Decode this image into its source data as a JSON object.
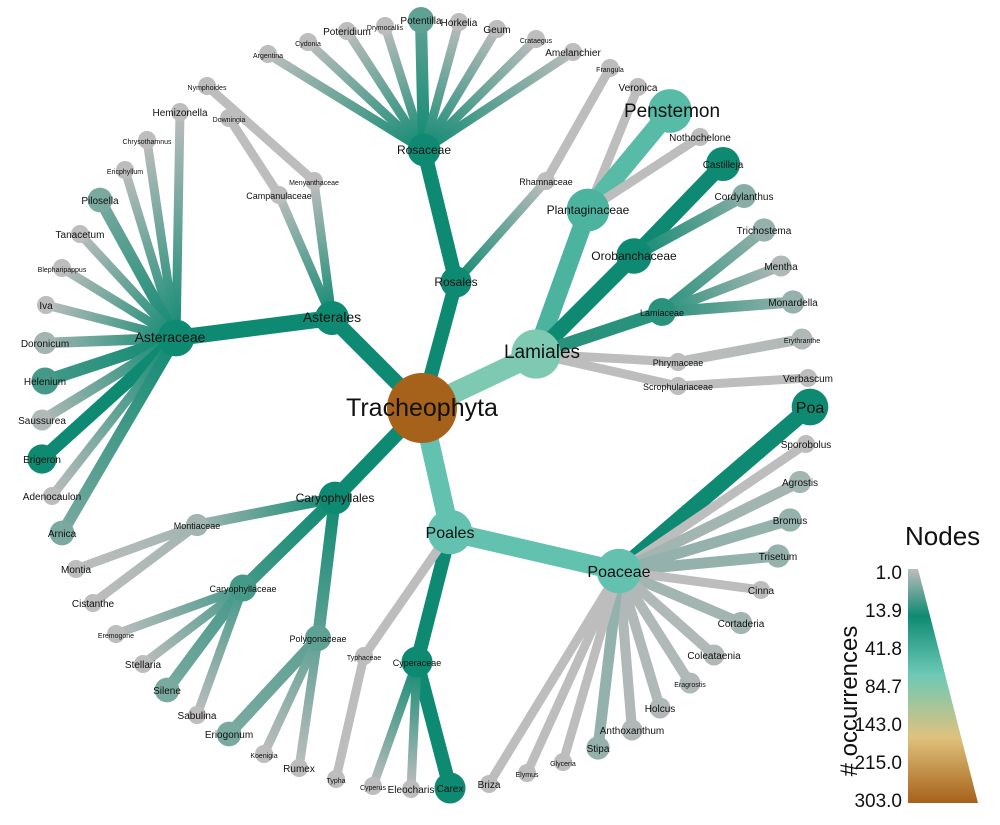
{
  "diagram": {
    "nodes": [
      {
        "id": "Tracheophyta",
        "label": "Tracheophyta",
        "occ": 303,
        "big": true
      },
      {
        "id": "Asterales",
        "label": "Asterales",
        "occ": 30
      },
      {
        "id": "Rosales",
        "label": "Rosales",
        "occ": 20
      },
      {
        "id": "Lamiales",
        "label": "Lamiales",
        "occ": 110,
        "big": true
      },
      {
        "id": "Poales",
        "label": "Poales",
        "occ": 80,
        "big": true
      },
      {
        "id": "Caryophyllales",
        "label": "Caryophyllales",
        "occ": 25
      },
      {
        "id": "Asteraceae",
        "label": "Asteraceae",
        "occ": 40
      },
      {
        "id": "Campanulaceae",
        "label": "Campanulaceae",
        "occ": 1
      },
      {
        "id": "Menyanthaceae",
        "label": "Menyanthaceae",
        "occ": 1
      },
      {
        "id": "Rosaceae",
        "label": "Rosaceae",
        "occ": 25
      },
      {
        "id": "Rhamnaceae",
        "label": "Rhamnaceae",
        "occ": 1
      },
      {
        "id": "Plantaginaceae",
        "label": "Plantaginaceae",
        "occ": 70
      },
      {
        "id": "Orobanchaceae",
        "label": "Orobanchaceae",
        "occ": 35
      },
      {
        "id": "Lamiaceae",
        "label": "Lamiaceae",
        "occ": 12
      },
      {
        "id": "Phrymaceae",
        "label": "Phrymaceae",
        "occ": 1
      },
      {
        "id": "Scrophulariaceae",
        "label": "Scrophulariaceae",
        "occ": 1
      },
      {
        "id": "Poaceae",
        "label": "Poaceae",
        "occ": 80
      },
      {
        "id": "Cyperaceae",
        "label": "Cyperaceae",
        "occ": 20
      },
      {
        "id": "Typhaceae",
        "label": "Typhaceae",
        "occ": 1
      },
      {
        "id": "Montiaceae",
        "label": "Montiaceae",
        "occ": 3
      },
      {
        "id": "Caryophyllaceae",
        "label": "Caryophyllaceae",
        "occ": 10
      },
      {
        "id": "Polygonaceae",
        "label": "Polygonaceae",
        "occ": 8
      },
      {
        "id": "Hemizonella",
        "label": "Hemizonella",
        "occ": 1
      },
      {
        "id": "Chrysothamnus",
        "label": "Chrysothamnus",
        "occ": 1
      },
      {
        "id": "Ericphyllum",
        "label": "Ericphyllum",
        "occ": 1
      },
      {
        "id": "Pilosella",
        "label": "Pilosella",
        "occ": 6
      },
      {
        "id": "Tanacetum",
        "label": "Tanacetum",
        "occ": 1
      },
      {
        "id": "Blepharipappus",
        "label": "Blepharipappus",
        "occ": 1
      },
      {
        "id": "Iva",
        "label": "Iva",
        "occ": 1
      },
      {
        "id": "Doronicum",
        "label": "Doronicum",
        "occ": 3
      },
      {
        "id": "Helenium",
        "label": "Helenium",
        "occ": 10
      },
      {
        "id": "Saussurea",
        "label": "Saussurea",
        "occ": 2
      },
      {
        "id": "Erigeron",
        "label": "Erigeron",
        "occ": 15
      },
      {
        "id": "Adenocaulon",
        "label": "Adenocaulon",
        "occ": 1
      },
      {
        "id": "Arnica",
        "label": "Arnica",
        "occ": 6
      },
      {
        "id": "Downingia",
        "label": "Downingia",
        "occ": 1
      },
      {
        "id": "Nymphoides",
        "label": "Nymphoides",
        "occ": 1
      },
      {
        "id": "Argentina",
        "label": "Argentina",
        "occ": 1
      },
      {
        "id": "Cydonia",
        "label": "Cydonia",
        "occ": 1
      },
      {
        "id": "Poteridium",
        "label": "Poteridium",
        "occ": 1
      },
      {
        "id": "Drymocallis",
        "label": "Drymocallis",
        "occ": 1
      },
      {
        "id": "Potentilla",
        "label": "Potentilla",
        "occ": 8
      },
      {
        "id": "Horkelia",
        "label": "Horkelia",
        "occ": 1
      },
      {
        "id": "Geum",
        "label": "Geum",
        "occ": 1
      },
      {
        "id": "Crataegus",
        "label": "Crataegus",
        "occ": 1
      },
      {
        "id": "Amelanchier",
        "label": "Amelanchier",
        "occ": 1
      },
      {
        "id": "Frangula",
        "label": "Frangula",
        "occ": 1
      },
      {
        "id": "Veronica",
        "label": "Veronica",
        "occ": 1
      },
      {
        "id": "Penstemon",
        "label": "Penstemon",
        "occ": 75,
        "big": true
      },
      {
        "id": "Nothochelone",
        "label": "Nothochelone",
        "occ": 1
      },
      {
        "id": "Castilleja",
        "label": "Castilleja",
        "occ": 30
      },
      {
        "id": "Cordylanthus",
        "label": "Cordylanthus",
        "occ": 5
      },
      {
        "id": "Trichostema",
        "label": "Trichostema",
        "occ": 4
      },
      {
        "id": "Mentha",
        "label": "Mentha",
        "occ": 2
      },
      {
        "id": "Monardella",
        "label": "Monardella",
        "occ": 4
      },
      {
        "id": "Erythranthe",
        "label": "Erythranthe",
        "occ": 2
      },
      {
        "id": "Verbascum",
        "label": "Verbascum",
        "occ": 1
      },
      {
        "id": "Poa",
        "label": "Poa",
        "occ": 40
      },
      {
        "id": "Sporobolus",
        "label": "Sporobolus",
        "occ": 1
      },
      {
        "id": "Agrostis",
        "label": "Agrostis",
        "occ": 3
      },
      {
        "id": "Bromus",
        "label": "Bromus",
        "occ": 4
      },
      {
        "id": "Trisetum",
        "label": "Trisetum",
        "occ": 4
      },
      {
        "id": "Cinna",
        "label": "Cinna",
        "occ": 1
      },
      {
        "id": "Cortaderia",
        "label": "Cortaderia",
        "occ": 3
      },
      {
        "id": "Coleataenia",
        "label": "Coleataenia",
        "occ": 2
      },
      {
        "id": "Eragrostis",
        "label": "Eragrostis",
        "occ": 2
      },
      {
        "id": "Holcus",
        "label": "Holcus",
        "occ": 2
      },
      {
        "id": "Anthoxanthum",
        "label": "Anthoxanthum",
        "occ": 2
      },
      {
        "id": "Stipa",
        "label": "Stipa",
        "occ": 4
      },
      {
        "id": "Glyceria",
        "label": "Glyceria",
        "occ": 1
      },
      {
        "id": "Elymus",
        "label": "Elymus",
        "occ": 1
      },
      {
        "id": "Briza",
        "label": "Briza",
        "occ": 1
      },
      {
        "id": "Carex",
        "label": "Carex",
        "occ": 20
      },
      {
        "id": "Eleocharis",
        "label": "Eleocharis",
        "occ": 1
      },
      {
        "id": "Cyperus",
        "label": "Cyperus",
        "occ": 1
      },
      {
        "id": "Typha",
        "label": "Typha",
        "occ": 1
      },
      {
        "id": "Montia",
        "label": "Montia",
        "occ": 1
      },
      {
        "id": "Cistanthe",
        "label": "Cistanthe",
        "occ": 1
      },
      {
        "id": "Eremogone",
        "label": "Eremogone",
        "occ": 1
      },
      {
        "id": "Stellaria",
        "label": "Stellaria",
        "occ": 1
      },
      {
        "id": "Silene",
        "label": "Silene",
        "occ": 6
      },
      {
        "id": "Sabulina",
        "label": "Sabulina",
        "occ": 1
      },
      {
        "id": "Eriogonum",
        "label": "Eriogonum",
        "occ": 6
      },
      {
        "id": "Koenigia",
        "label": "Koenigia",
        "occ": 1
      },
      {
        "id": "Rumex",
        "label": "Rumex",
        "occ": 1
      }
    ],
    "edges": [
      [
        "Tracheophyta",
        "Asterales"
      ],
      [
        "Tracheophyta",
        "Rosales"
      ],
      [
        "Tracheophyta",
        "Lamiales"
      ],
      [
        "Tracheophyta",
        "Poales"
      ],
      [
        "Tracheophyta",
        "Caryophyllales"
      ],
      [
        "Asterales",
        "Asteraceae"
      ],
      [
        "Asterales",
        "Campanulaceae"
      ],
      [
        "Asterales",
        "Menyanthaceae"
      ],
      [
        "Rosales",
        "Rosaceae"
      ],
      [
        "Rosales",
        "Rhamnaceae"
      ],
      [
        "Lamiales",
        "Plantaginaceae"
      ],
      [
        "Lamiales",
        "Orobanchaceae"
      ],
      [
        "Lamiales",
        "Lamiaceae"
      ],
      [
        "Lamiales",
        "Phrymaceae"
      ],
      [
        "Lamiales",
        "Scrophulariaceae"
      ],
      [
        "Poales",
        "Poaceae"
      ],
      [
        "Poales",
        "Cyperaceae"
      ],
      [
        "Poales",
        "Typhaceae"
      ],
      [
        "Caryophyllales",
        "Montiaceae"
      ],
      [
        "Caryophyllales",
        "Caryophyllaceae"
      ],
      [
        "Caryophyllales",
        "Polygonaceae"
      ],
      [
        "Asteraceae",
        "Hemizonella"
      ],
      [
        "Asteraceae",
        "Chrysothamnus"
      ],
      [
        "Asteraceae",
        "Ericphyllum"
      ],
      [
        "Asteraceae",
        "Pilosella"
      ],
      [
        "Asteraceae",
        "Tanacetum"
      ],
      [
        "Asteraceae",
        "Blepharipappus"
      ],
      [
        "Asteraceae",
        "Iva"
      ],
      [
        "Asteraceae",
        "Doronicum"
      ],
      [
        "Asteraceae",
        "Helenium"
      ],
      [
        "Asteraceae",
        "Saussurea"
      ],
      [
        "Asteraceae",
        "Erigeron"
      ],
      [
        "Asteraceae",
        "Adenocaulon"
      ],
      [
        "Asteraceae",
        "Arnica"
      ],
      [
        "Campanulaceae",
        "Downingia"
      ],
      [
        "Menyanthaceae",
        "Nymphoides"
      ],
      [
        "Rosaceae",
        "Argentina"
      ],
      [
        "Rosaceae",
        "Cydonia"
      ],
      [
        "Rosaceae",
        "Poteridium"
      ],
      [
        "Rosaceae",
        "Drymocallis"
      ],
      [
        "Rosaceae",
        "Potentilla"
      ],
      [
        "Rosaceae",
        "Horkelia"
      ],
      [
        "Rosaceae",
        "Geum"
      ],
      [
        "Rosaceae",
        "Crataegus"
      ],
      [
        "Rosaceae",
        "Amelanchier"
      ],
      [
        "Rhamnaceae",
        "Frangula"
      ],
      [
        "Plantaginaceae",
        "Veronica"
      ],
      [
        "Plantaginaceae",
        "Penstemon"
      ],
      [
        "Plantaginaceae",
        "Nothochelone"
      ],
      [
        "Orobanchaceae",
        "Castilleja"
      ],
      [
        "Orobanchaceae",
        "Cordylanthus"
      ],
      [
        "Lamiaceae",
        "Trichostema"
      ],
      [
        "Lamiaceae",
        "Mentha"
      ],
      [
        "Lamiaceae",
        "Monardella"
      ],
      [
        "Phrymaceae",
        "Erythranthe"
      ],
      [
        "Scrophulariaceae",
        "Verbascum"
      ],
      [
        "Poaceae",
        "Poa"
      ],
      [
        "Poaceae",
        "Sporobolus"
      ],
      [
        "Poaceae",
        "Agrostis"
      ],
      [
        "Poaceae",
        "Bromus"
      ],
      [
        "Poaceae",
        "Trisetum"
      ],
      [
        "Poaceae",
        "Cinna"
      ],
      [
        "Poaceae",
        "Cortaderia"
      ],
      [
        "Poaceae",
        "Coleataenia"
      ],
      [
        "Poaceae",
        "Eragrostis"
      ],
      [
        "Poaceae",
        "Holcus"
      ],
      [
        "Poaceae",
        "Anthoxanthum"
      ],
      [
        "Poaceae",
        "Stipa"
      ],
      [
        "Poaceae",
        "Glyceria"
      ],
      [
        "Poaceae",
        "Elymus"
      ],
      [
        "Poaceae",
        "Briza"
      ],
      [
        "Cyperaceae",
        "Carex"
      ],
      [
        "Cyperaceae",
        "Eleocharis"
      ],
      [
        "Cyperaceae",
        "Cyperus"
      ],
      [
        "Typhaceae",
        "Typha"
      ],
      [
        "Montiaceae",
        "Montia"
      ],
      [
        "Montiaceae",
        "Cistanthe"
      ],
      [
        "Caryophyllaceae",
        "Eremogone"
      ],
      [
        "Caryophyllaceae",
        "Stellaria"
      ],
      [
        "Caryophyllaceae",
        "Silene"
      ],
      [
        "Caryophyllaceae",
        "Sabulina"
      ],
      [
        "Polygonaceae",
        "Eriogonum"
      ],
      [
        "Polygonaceae",
        "Koenigia"
      ],
      [
        "Polygonaceae",
        "Rumex"
      ]
    ]
  },
  "legend": {
    "title": "Nodes",
    "axis_label": "# occurrences",
    "ticks": [
      "1.0",
      "13.9",
      "41.8",
      "84.7",
      "143.0",
      "215.0",
      "303.0"
    ],
    "colors": {
      "low": "#bdbdbd",
      "mid": "#0f8a72",
      "high": "#6cc9b6",
      "sand": "#dfc27d",
      "brown": "#a6611a"
    }
  }
}
